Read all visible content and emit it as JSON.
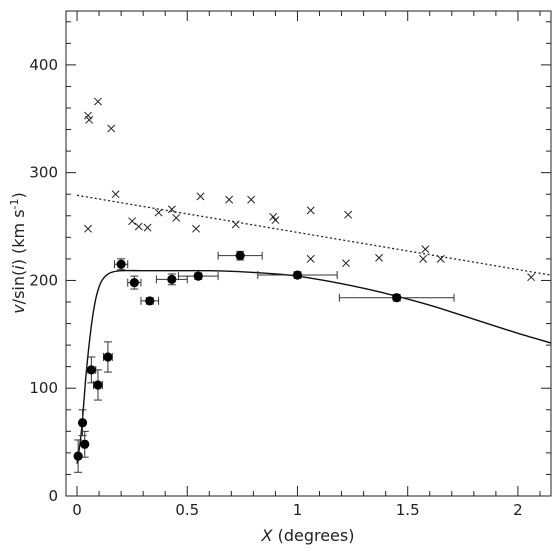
{
  "chart_data": {
    "type": "scatter",
    "title": "",
    "xlabel_var": "X",
    "xlabel_unit": "(degrees)",
    "ylabel_var": "v",
    "ylabel_mid": "/sin(",
    "ylabel_i": "i",
    "ylabel_close": ")",
    "ylabel_unit": "(km s",
    "ylabel_sup": "-1",
    "ylabel_end": ")",
    "xlim": [
      -0.05,
      2.15
    ],
    "ylim": [
      0,
      450
    ],
    "xticks": [
      0,
      0.5,
      1,
      1.5,
      2
    ],
    "xtick_labels": [
      "0",
      "0.5",
      "1",
      "1.5",
      "2"
    ],
    "yticks": [
      0,
      100,
      200,
      300,
      400
    ],
    "ytick_labels": [
      "0",
      "100",
      "200",
      "300",
      "400"
    ],
    "grid": false,
    "cross_points": [
      [
        0.05,
        353
      ],
      [
        0.055,
        349
      ],
      [
        0.095,
        366
      ],
      [
        0.155,
        341
      ],
      [
        0.05,
        248
      ],
      [
        0.175,
        280
      ],
      [
        0.25,
        255
      ],
      [
        0.28,
        250
      ],
      [
        0.32,
        249
      ],
      [
        0.37,
        263
      ],
      [
        0.43,
        266
      ],
      [
        0.45,
        258
      ],
      [
        0.54,
        248
      ],
      [
        0.56,
        278
      ],
      [
        0.69,
        275
      ],
      [
        0.72,
        252
      ],
      [
        0.79,
        275
      ],
      [
        0.89,
        259
      ],
      [
        0.9,
        256
      ],
      [
        1.06,
        220
      ],
      [
        1.06,
        265
      ],
      [
        1.22,
        216
      ],
      [
        1.23,
        261
      ],
      [
        1.37,
        221
      ],
      [
        1.57,
        220
      ],
      [
        1.58,
        229
      ],
      [
        1.65,
        220
      ],
      [
        2.06,
        203
      ]
    ],
    "dotted_line": {
      "x": [
        0.0,
        2.15
      ],
      "y": [
        279,
        205
      ]
    },
    "model_curve": {
      "x": [
        0.0,
        0.02,
        0.04,
        0.06,
        0.08,
        0.1,
        0.12,
        0.15,
        0.2,
        0.3,
        0.4,
        0.5,
        0.6,
        0.7,
        0.8,
        0.9,
        1.0,
        1.2,
        1.4,
        1.6,
        1.8,
        2.0,
        2.15
      ],
      "y": [
        30,
        60,
        110,
        150,
        178,
        194,
        202,
        207,
        209,
        209,
        209,
        209,
        209,
        208.5,
        207.5,
        206,
        204,
        197,
        188,
        177,
        164,
        151,
        142
      ]
    },
    "measured_points": [
      {
        "x": 0.005,
        "y": 37,
        "xerr": 0.01,
        "yerr": 15
      },
      {
        "x": 0.025,
        "y": 68,
        "xerr": 0.01,
        "yerr": 12
      },
      {
        "x": 0.035,
        "y": 48,
        "xerr": 0.01,
        "yerr": 12
      },
      {
        "x": 0.065,
        "y": 117,
        "xerr": 0.02,
        "yerr": 12
      },
      {
        "x": 0.095,
        "y": 103,
        "xerr": 0.02,
        "yerr": 14
      },
      {
        "x": 0.14,
        "y": 129,
        "xerr": 0.02,
        "yerr": 14
      },
      {
        "x": 0.2,
        "y": 215,
        "xerr": 0.03,
        "yerr": 5
      },
      {
        "x": 0.26,
        "y": 198,
        "xerr": 0.03,
        "yerr": 6
      },
      {
        "x": 0.33,
        "y": 181,
        "xerr": 0.04,
        "yerr": 3
      },
      {
        "x": 0.43,
        "y": 201,
        "xerr": 0.07,
        "yerr": 5
      },
      {
        "x": 0.55,
        "y": 204,
        "xerr": 0.09,
        "yerr": 3
      },
      {
        "x": 0.74,
        "y": 223,
        "xerr": 0.1,
        "yerr": 4
      },
      {
        "x": 1.0,
        "y": 205,
        "xerr": 0.18,
        "yerr": 3
      },
      {
        "x": 1.45,
        "y": 184,
        "xerr": 0.26,
        "yerr": 3
      }
    ]
  }
}
